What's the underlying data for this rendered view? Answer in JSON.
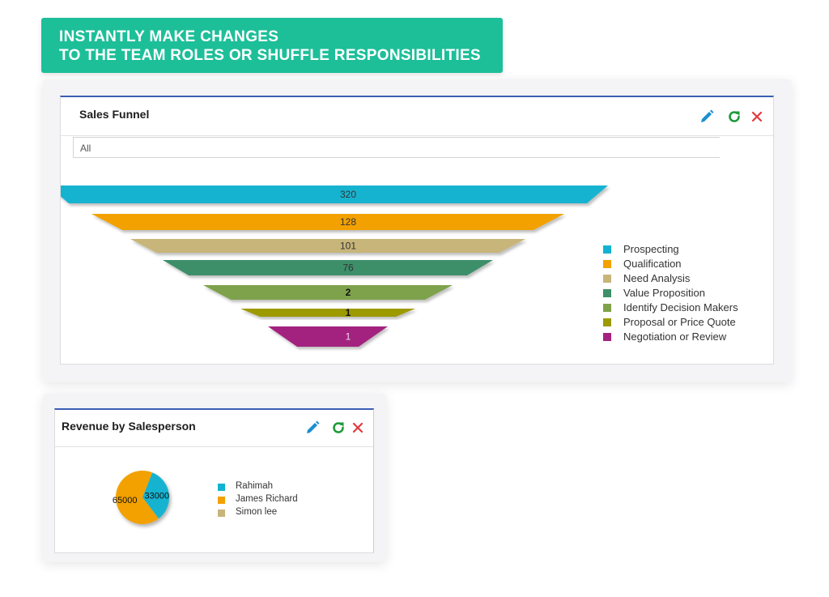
{
  "banner": {
    "line1": "INSTANTLY MAKE CHANGES",
    "line2": "TO THE TEAM ROLES OR SHUFFLE RESPONSIBILITIES"
  },
  "icons": {
    "edit": "pencil-icon",
    "refresh": "refresh-icon",
    "close": "close-icon"
  },
  "colors": {
    "edit": "#1a8fd1",
    "refresh": "#1e9a3a",
    "close": "#e0393e",
    "panel_top": "#3a5db3",
    "banner": "#1dbf99"
  },
  "sales_funnel": {
    "title": "Sales Funnel",
    "filter_value": "All",
    "chart_data": {
      "type": "funnel",
      "stages": [
        {
          "name": "Prospecting",
          "value": 320,
          "color": "#12b3d0"
        },
        {
          "name": "Qualification",
          "value": 128,
          "color": "#f2a100"
        },
        {
          "name": "Need Analysis",
          "value": 101,
          "color": "#c7b57a"
        },
        {
          "name": "Value Proposition",
          "value": 76,
          "color": "#3e8f6a"
        },
        {
          "name": "Identify Decision Makers",
          "value": 2,
          "color": "#7ea24c"
        },
        {
          "name": "Proposal or Price Quote",
          "value": 1,
          "color": "#9d9a00"
        },
        {
          "name": "Negotiation or Review",
          "value": 1,
          "color": "#a3237f"
        }
      ]
    }
  },
  "revenue": {
    "title": "Revenue by Salesperson",
    "chart_data": {
      "type": "pie",
      "slices": [
        {
          "name": "Rahimah",
          "value": 33000,
          "color": "#12b3d0"
        },
        {
          "name": "James Richard",
          "value": 65000,
          "color": "#f2a100"
        },
        {
          "name": "Simon lee",
          "value": 0,
          "color": "#c7b57a"
        }
      ]
    }
  }
}
